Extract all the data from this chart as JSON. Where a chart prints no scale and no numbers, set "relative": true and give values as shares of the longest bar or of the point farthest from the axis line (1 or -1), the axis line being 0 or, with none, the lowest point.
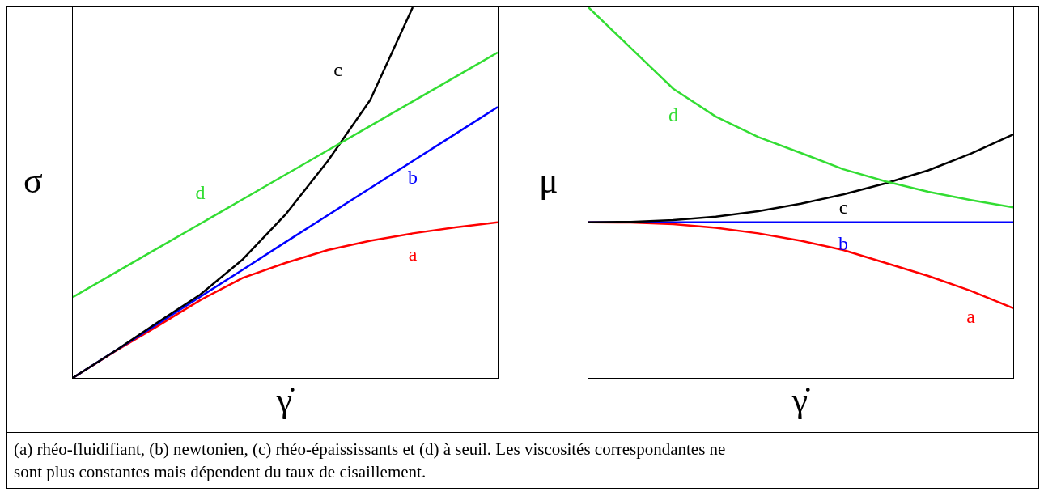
{
  "chart_data": [
    {
      "type": "line",
      "relative": true,
      "ylabel": "σ",
      "xlabel": "γ̇",
      "categories": [
        null,
        null,
        null,
        null,
        null,
        null,
        null,
        null,
        null,
        null,
        null
      ],
      "series": [
        {
          "name": "a",
          "color": "#ff0000",
          "values": [
            0,
            0.072,
            0.14,
            0.21,
            0.27,
            0.31,
            0.345,
            0.37,
            0.39,
            0.406,
            0.42
          ]
        },
        {
          "name": "b",
          "color": "#0000ff",
          "values": [
            0,
            0.073,
            0.146,
            0.219,
            0.292,
            0.366,
            0.439,
            0.512,
            0.585,
            0.658,
            0.731
          ]
        },
        {
          "name": "c",
          "color": "#000000",
          "values": [
            0,
            0.073,
            0.15,
            0.225,
            0.32,
            0.44,
            0.585,
            0.75,
            1,
            null,
            null
          ]
        },
        {
          "name": "d",
          "color": "#33dd33",
          "values": [
            0.218,
            0.284,
            0.35,
            0.416,
            0.482,
            0.548,
            0.614,
            0.68,
            0.746,
            0.812,
            0.878
          ]
        }
      ]
    },
    {
      "type": "line",
      "relative": true,
      "ylabel": "μ",
      "xlabel": "γ̇",
      "categories": [
        null,
        null,
        null,
        null,
        null,
        null,
        null,
        null,
        null,
        null,
        null
      ],
      "annotations": [
        "(a) rhéo-fluidifiant, (b) newtonien, (c) rhéo-épaississants et (d) à seuil. Les viscosités correspondantes ne sont plus constantes mais dépendent du taux de cisaillement."
      ],
      "series": [
        {
          "name": "a",
          "color": "#ff0000",
          "values": [
            0.42,
            0.419,
            0.415,
            0.405,
            0.39,
            0.37,
            0.345,
            0.31,
            0.275,
            0.235,
            0.188
          ]
        },
        {
          "name": "b",
          "color": "#0000ff",
          "values": [
            0.42,
            0.42,
            0.42,
            0.42,
            0.42,
            0.42,
            0.42,
            0.42,
            0.42,
            0.42,
            0.42
          ]
        },
        {
          "name": "c",
          "color": "#000000",
          "values": [
            0.42,
            0.421,
            0.426,
            0.435,
            0.45,
            0.47,
            0.495,
            0.525,
            0.56,
            0.605,
            0.657
          ]
        },
        {
          "name": "d",
          "color": "#33dd33",
          "values": [
            1,
            0.89,
            0.78,
            0.705,
            0.65,
            0.607,
            0.563,
            0.53,
            0.502,
            0.48,
            0.46
          ]
        }
      ]
    }
  ]
}
